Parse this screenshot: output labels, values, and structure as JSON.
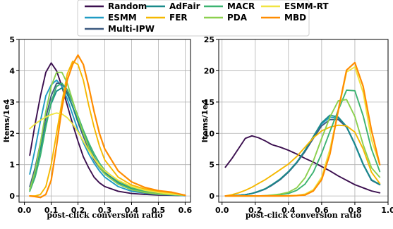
{
  "legend": [
    {
      "name": "Random",
      "color": "#3b0f4f"
    },
    {
      "name": "AdFair",
      "color": "#1a8a8a"
    },
    {
      "name": "MACR",
      "color": "#3cb371"
    },
    {
      "name": "ESMM-RT",
      "color": "#f0e442"
    },
    {
      "name": "ESMM",
      "color": "#1f9bc4"
    },
    {
      "name": "FER",
      "color": "#f5b800"
    },
    {
      "name": "PDA",
      "color": "#8cd04e"
    },
    {
      "name": "MBD",
      "color": "#ff8c00"
    },
    {
      "name": "Multi-IPW",
      "color": "#3d5a80"
    }
  ],
  "chart_data": [
    {
      "type": "line",
      "title": "",
      "xlabel": "post-click conversion ratio",
      "ylabel": "Items/1e4",
      "xlim": [
        -0.02,
        0.62
      ],
      "ylim": [
        -0.2,
        5
      ],
      "xticks": [
        "0.0",
        "0.1",
        "0.2",
        "0.3",
        "0.4",
        "0.5",
        "0.6"
      ],
      "xtick_values": [
        0.0,
        0.1,
        0.2,
        0.3,
        0.4,
        0.5,
        0.6
      ],
      "yticks": [
        "0",
        "1",
        "2",
        "3",
        "4",
        "5"
      ],
      "ytick_values": [
        0,
        1,
        2,
        3,
        4,
        5
      ],
      "grid": true,
      "series": [
        {
          "name": "Random",
          "x": [
            0.02,
            0.04,
            0.06,
            0.08,
            0.1,
            0.12,
            0.14,
            0.16,
            0.18,
            0.2,
            0.22,
            0.24,
            0.26,
            0.28,
            0.3,
            0.35,
            0.4,
            0.45,
            0.5,
            0.55,
            0.6
          ],
          "y": [
            1.3,
            2.3,
            3.2,
            3.95,
            4.25,
            4.0,
            3.5,
            2.9,
            2.3,
            1.75,
            1.25,
            0.9,
            0.6,
            0.42,
            0.3,
            0.15,
            0.08,
            0.05,
            0.03,
            0.02,
            0.01
          ]
        },
        {
          "name": "ESMM",
          "x": [
            0.02,
            0.04,
            0.06,
            0.08,
            0.1,
            0.12,
            0.14,
            0.16,
            0.18,
            0.2,
            0.22,
            0.24,
            0.26,
            0.28,
            0.3,
            0.35,
            0.4,
            0.45,
            0.5,
            0.55,
            0.6
          ],
          "y": [
            0.7,
            1.5,
            2.4,
            3.2,
            3.55,
            3.7,
            3.5,
            3.1,
            2.6,
            2.1,
            1.7,
            1.35,
            1.05,
            0.8,
            0.6,
            0.3,
            0.15,
            0.09,
            0.05,
            0.03,
            0.01
          ]
        },
        {
          "name": "Multi-IPW",
          "x": [
            0.02,
            0.04,
            0.06,
            0.08,
            0.1,
            0.12,
            0.14,
            0.16,
            0.18,
            0.2,
            0.22,
            0.24,
            0.26,
            0.28,
            0.3,
            0.35,
            0.4,
            0.45,
            0.5,
            0.55,
            0.6
          ],
          "y": [
            0.3,
            0.9,
            1.7,
            2.5,
            3.2,
            3.6,
            3.6,
            3.3,
            2.85,
            2.35,
            1.9,
            1.5,
            1.15,
            0.9,
            0.7,
            0.38,
            0.2,
            0.1,
            0.06,
            0.04,
            0.02
          ]
        },
        {
          "name": "AdFair",
          "x": [
            0.02,
            0.04,
            0.06,
            0.08,
            0.1,
            0.12,
            0.14,
            0.16,
            0.18,
            0.2,
            0.22,
            0.24,
            0.26,
            0.28,
            0.3,
            0.35,
            0.4,
            0.45,
            0.5,
            0.55,
            0.6
          ],
          "y": [
            0.2,
            0.75,
            1.5,
            2.3,
            2.95,
            3.35,
            3.45,
            3.25,
            2.85,
            2.4,
            2.0,
            1.6,
            1.25,
            0.95,
            0.75,
            0.42,
            0.22,
            0.12,
            0.07,
            0.05,
            0.03
          ]
        },
        {
          "name": "FER",
          "x": [
            0.02,
            0.04,
            0.06,
            0.08,
            0.1,
            0.12,
            0.14,
            0.16,
            0.18,
            0.2,
            0.22,
            0.24,
            0.26,
            0.28,
            0.3,
            0.35,
            0.4,
            0.45,
            0.5,
            0.55,
            0.6
          ],
          "y": [
            0.0,
            0.0,
            0.05,
            0.3,
            1.0,
            2.0,
            3.0,
            3.9,
            4.3,
            4.2,
            3.7,
            2.9,
            2.2,
            1.6,
            1.15,
            0.6,
            0.35,
            0.22,
            0.14,
            0.08,
            0.03
          ]
        },
        {
          "name": "MACR",
          "x": [
            0.02,
            0.04,
            0.06,
            0.08,
            0.1,
            0.12,
            0.14,
            0.16,
            0.18,
            0.2,
            0.22,
            0.24,
            0.26,
            0.28,
            0.3,
            0.35,
            0.4,
            0.45,
            0.5,
            0.55,
            0.6
          ],
          "y": [
            0.15,
            0.6,
            1.3,
            2.2,
            3.0,
            3.5,
            3.6,
            3.4,
            3.0,
            2.55,
            2.1,
            1.7,
            1.35,
            1.05,
            0.82,
            0.47,
            0.26,
            0.15,
            0.09,
            0.05,
            0.02
          ]
        },
        {
          "name": "PDA",
          "x": [
            0.02,
            0.04,
            0.06,
            0.08,
            0.1,
            0.12,
            0.14,
            0.16,
            0.18,
            0.2,
            0.22,
            0.24,
            0.26,
            0.28,
            0.3,
            0.35,
            0.4,
            0.45,
            0.5,
            0.55,
            0.6
          ],
          "y": [
            0.2,
            0.8,
            1.7,
            2.7,
            3.5,
            3.95,
            3.95,
            3.6,
            3.05,
            2.5,
            2.0,
            1.55,
            1.2,
            0.92,
            0.7,
            0.38,
            0.2,
            0.11,
            0.06,
            0.04,
            0.02
          ]
        },
        {
          "name": "ESMM-RT",
          "x": [
            0.02,
            0.04,
            0.06,
            0.08,
            0.1,
            0.12,
            0.14,
            0.16,
            0.18,
            0.2,
            0.22,
            0.24,
            0.26,
            0.28,
            0.3,
            0.35,
            0.4,
            0.45,
            0.5,
            0.55,
            0.6
          ],
          "y": [
            2.15,
            2.3,
            2.42,
            2.52,
            2.6,
            2.65,
            2.62,
            2.5,
            2.3,
            2.05,
            1.75,
            1.45,
            1.2,
            0.98,
            0.8,
            0.5,
            0.3,
            0.18,
            0.11,
            0.06,
            0.03
          ]
        },
        {
          "name": "MBD",
          "x": [
            0.02,
            0.04,
            0.06,
            0.08,
            0.1,
            0.12,
            0.14,
            0.16,
            0.18,
            0.2,
            0.22,
            0.24,
            0.26,
            0.28,
            0.3,
            0.35,
            0.4,
            0.45,
            0.5,
            0.55,
            0.6
          ],
          "y": [
            0.0,
            -0.02,
            -0.05,
            0.05,
            0.5,
            1.6,
            2.8,
            3.7,
            4.2,
            4.5,
            4.2,
            3.5,
            2.7,
            2.0,
            1.5,
            0.8,
            0.45,
            0.27,
            0.17,
            0.12,
            0.02
          ]
        }
      ]
    },
    {
      "type": "line",
      "title": "",
      "xlabel": "post-click conversion ratio",
      "ylabel": "Items/1e4",
      "xlim": [
        -0.02,
        1.0
      ],
      "ylim": [
        -1,
        25
      ],
      "xticks": [
        "0.0",
        "0.2",
        "0.4",
        "0.6",
        "0.8",
        "1.0"
      ],
      "xtick_values": [
        0.0,
        0.2,
        0.4,
        0.6,
        0.8,
        1.0
      ],
      "yticks": [
        "0",
        "5",
        "10",
        "15",
        "20",
        "25"
      ],
      "ytick_values": [
        0,
        5,
        10,
        15,
        20,
        25
      ],
      "grid": true,
      "series": [
        {
          "name": "Random",
          "x": [
            0.02,
            0.06,
            0.1,
            0.14,
            0.18,
            0.22,
            0.26,
            0.3,
            0.35,
            0.4,
            0.45,
            0.5,
            0.55,
            0.6,
            0.65,
            0.7,
            0.75,
            0.8,
            0.85,
            0.9,
            0.95
          ],
          "y": [
            4.6,
            6.0,
            7.6,
            9.2,
            9.6,
            9.3,
            8.8,
            8.2,
            7.8,
            7.3,
            6.7,
            6.0,
            5.4,
            4.7,
            4.0,
            3.2,
            2.5,
            1.8,
            1.3,
            0.8,
            0.5
          ]
        },
        {
          "name": "ESMM",
          "x": [
            0.02,
            0.06,
            0.1,
            0.14,
            0.18,
            0.22,
            0.26,
            0.3,
            0.35,
            0.4,
            0.45,
            0.5,
            0.55,
            0.6,
            0.65,
            0.7,
            0.75,
            0.8,
            0.85,
            0.9,
            0.95
          ],
          "y": [
            0.0,
            0.05,
            0.1,
            0.2,
            0.4,
            0.7,
            1.1,
            1.7,
            2.6,
            3.8,
            5.3,
            7.2,
            9.4,
            11.5,
            12.6,
            12.4,
            11.0,
            8.2,
            5.0,
            2.5,
            1.9
          ]
        },
        {
          "name": "Multi-IPW",
          "x": [
            0.02,
            0.06,
            0.1,
            0.14,
            0.18,
            0.22,
            0.26,
            0.3,
            0.35,
            0.4,
            0.45,
            0.5,
            0.55,
            0.6,
            0.65,
            0.7,
            0.75,
            0.8,
            0.85,
            0.9,
            0.95
          ],
          "y": [
            0.0,
            0.05,
            0.1,
            0.2,
            0.4,
            0.7,
            1.1,
            1.7,
            2.6,
            3.8,
            5.3,
            7.1,
            9.2,
            11.2,
            12.2,
            12.2,
            11.0,
            8.3,
            5.1,
            2.5,
            1.8
          ]
        },
        {
          "name": "AdFair",
          "x": [
            0.02,
            0.06,
            0.1,
            0.14,
            0.18,
            0.22,
            0.26,
            0.3,
            0.35,
            0.4,
            0.45,
            0.5,
            0.55,
            0.6,
            0.65,
            0.7,
            0.75,
            0.8,
            0.85,
            0.9,
            0.95
          ],
          "y": [
            0.0,
            0.05,
            0.1,
            0.2,
            0.4,
            0.75,
            1.15,
            1.8,
            2.7,
            3.9,
            5.4,
            7.3,
            9.5,
            11.7,
            12.9,
            12.6,
            11.1,
            8.3,
            5.1,
            2.6,
            1.8
          ]
        },
        {
          "name": "FER",
          "x": [
            0.02,
            0.06,
            0.1,
            0.14,
            0.18,
            0.22,
            0.26,
            0.3,
            0.35,
            0.4,
            0.45,
            0.5,
            0.55,
            0.6,
            0.65,
            0.7,
            0.75,
            0.8,
            0.85,
            0.9,
            0.95
          ],
          "y": [
            0.0,
            0.2,
            0.5,
            0.9,
            1.4,
            2.0,
            2.6,
            3.3,
            4.2,
            5.1,
            6.3,
            7.8,
            9.3,
            10.4,
            11.0,
            11.3,
            11.2,
            10.2,
            7.5,
            3.8,
            2.0
          ]
        },
        {
          "name": "MACR",
          "x": [
            0.02,
            0.06,
            0.1,
            0.14,
            0.18,
            0.22,
            0.26,
            0.3,
            0.35,
            0.4,
            0.45,
            0.5,
            0.55,
            0.6,
            0.65,
            0.7,
            0.75,
            0.8,
            0.85,
            0.9,
            0.95
          ],
          "y": [
            0.0,
            0.0,
            0.0,
            0.0,
            0.0,
            0.0,
            0.05,
            0.1,
            0.2,
            0.4,
            0.9,
            1.9,
            3.8,
            6.8,
            10.3,
            13.7,
            16.9,
            16.8,
            12.8,
            7.5,
            3.9
          ]
        },
        {
          "name": "PDA",
          "x": [
            0.02,
            0.06,
            0.1,
            0.14,
            0.18,
            0.22,
            0.26,
            0.3,
            0.35,
            0.4,
            0.45,
            0.5,
            0.55,
            0.6,
            0.65,
            0.7,
            0.75,
            0.8,
            0.85,
            0.9,
            0.95
          ],
          "y": [
            0.0,
            0.0,
            0.0,
            0.0,
            0.0,
            0.0,
            0.05,
            0.15,
            0.3,
            0.6,
            1.3,
            2.9,
            5.6,
            9.2,
            12.6,
            15.2,
            15.4,
            12.7,
            8.2,
            4.5,
            3.0
          ]
        },
        {
          "name": "ESMM-RT",
          "x": [
            0.02,
            0.06,
            0.1,
            0.14,
            0.18,
            0.22,
            0.26,
            0.3,
            0.35,
            0.4,
            0.45,
            0.5,
            0.55,
            0.6,
            0.65,
            0.7,
            0.75,
            0.8,
            0.85,
            0.9,
            0.95
          ],
          "y": [
            0.0,
            0.0,
            0.0,
            0.0,
            0.0,
            0.0,
            0.0,
            0.0,
            0.0,
            0.05,
            0.1,
            0.3,
            1.0,
            3.0,
            7.5,
            13.5,
            19.8,
            20.6,
            16.5,
            9.0,
            5.0
          ]
        },
        {
          "name": "MBD",
          "x": [
            0.02,
            0.06,
            0.1,
            0.14,
            0.18,
            0.22,
            0.26,
            0.3,
            0.35,
            0.4,
            0.45,
            0.5,
            0.55,
            0.6,
            0.65,
            0.7,
            0.75,
            0.8,
            0.85,
            0.9,
            0.95
          ],
          "y": [
            0.0,
            0.0,
            0.0,
            0.0,
            0.0,
            0.0,
            0.0,
            0.0,
            0.0,
            0.0,
            0.05,
            0.15,
            0.8,
            2.6,
            6.7,
            13.7,
            20.1,
            21.3,
            17.5,
            10.5,
            5.0
          ]
        }
      ]
    }
  ]
}
